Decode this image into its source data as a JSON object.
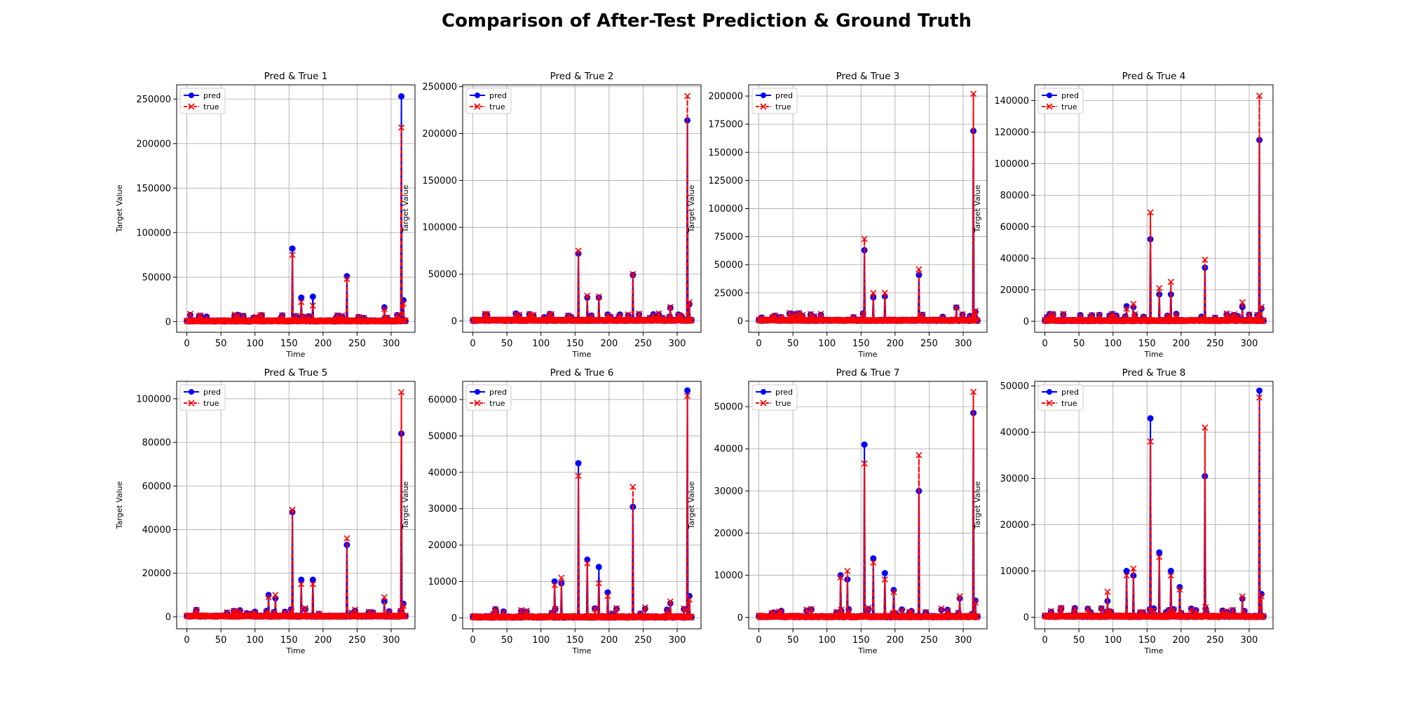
{
  "figure": {
    "suptitle": "Comparison of After-Test Prediction & Ground Truth"
  },
  "colors": {
    "pred": "#0000ff",
    "true": "#ff0000",
    "grid": "#b0b0b0",
    "axes": "#000000"
  },
  "chart_data": [
    {
      "type": "line",
      "title": "Pred & True 1",
      "xlabel": "Time",
      "ylabel": "Target Value",
      "xlim": [
        -15,
        335
      ],
      "ylim": [
        -12000,
        266000
      ],
      "xticks": [
        0,
        50,
        100,
        150,
        200,
        250,
        300
      ],
      "yticks": [
        0,
        50000,
        100000,
        150000,
        200000,
        250000
      ],
      "grid": true,
      "legend": "upper-left",
      "base": 1200,
      "series": [
        {
          "name": "pred",
          "marker": "o",
          "style": "solid",
          "x": [
            155,
            168,
            185,
            235,
            290,
            315,
            318
          ],
          "y": [
            82000,
            27000,
            28000,
            51000,
            16000,
            253000,
            24000
          ]
        },
        {
          "name": "true",
          "marker": "x",
          "style": "dashed",
          "x": [
            155,
            168,
            185,
            235,
            290,
            315,
            318
          ],
          "y": [
            75000,
            22000,
            18000,
            48000,
            14000,
            218000,
            20000
          ]
        }
      ]
    },
    {
      "type": "line",
      "title": "Pred & True 2",
      "xlabel": "Time",
      "ylabel": "Target Value",
      "xlim": [
        -15,
        335
      ],
      "ylim": [
        -12000,
        252000
      ],
      "xticks": [
        0,
        50,
        100,
        150,
        200,
        250,
        300
      ],
      "yticks": [
        0,
        50000,
        100000,
        150000,
        200000,
        250000
      ],
      "grid": true,
      "legend": "upper-left",
      "base": 1200,
      "series": [
        {
          "name": "pred",
          "marker": "o",
          "style": "solid",
          "x": [
            155,
            168,
            185,
            235,
            290,
            315,
            318
          ],
          "y": [
            72000,
            25000,
            25000,
            49000,
            14000,
            214000,
            18000
          ]
        },
        {
          "name": "true",
          "marker": "x",
          "style": "dashed",
          "x": [
            155,
            168,
            185,
            235,
            290,
            315,
            318
          ],
          "y": [
            75000,
            27000,
            26000,
            50000,
            15000,
            240000,
            20000
          ]
        }
      ]
    },
    {
      "type": "line",
      "title": "Pred & True 3",
      "xlabel": "Time",
      "ylabel": "Target Value",
      "xlim": [
        -15,
        335
      ],
      "ylim": [
        -10000,
        210000
      ],
      "xticks": [
        0,
        50,
        100,
        150,
        200,
        250,
        300
      ],
      "yticks": [
        0,
        25000,
        50000,
        75000,
        100000,
        125000,
        150000,
        175000,
        200000
      ],
      "grid": true,
      "legend": "upper-left",
      "base": 1000,
      "series": [
        {
          "name": "pred",
          "marker": "o",
          "style": "solid",
          "x": [
            155,
            168,
            185,
            235,
            290,
            315,
            318
          ],
          "y": [
            63000,
            21000,
            22000,
            41000,
            12000,
            169000,
            8000
          ]
        },
        {
          "name": "true",
          "marker": "x",
          "style": "dashed",
          "x": [
            155,
            168,
            185,
            235,
            290,
            315,
            318
          ],
          "y": [
            73000,
            25000,
            25000,
            46000,
            12000,
            202000,
            9000
          ]
        }
      ]
    },
    {
      "type": "line",
      "title": "Pred & True 4",
      "xlabel": "Time",
      "ylabel": "Target Value",
      "xlim": [
        -15,
        335
      ],
      "ylim": [
        -7000,
        150000
      ],
      "xticks": [
        0,
        50,
        100,
        150,
        200,
        250,
        300
      ],
      "yticks": [
        0,
        20000,
        40000,
        60000,
        80000,
        100000,
        120000,
        140000
      ],
      "grid": true,
      "legend": "upper-left",
      "base": 700,
      "series": [
        {
          "name": "pred",
          "marker": "o",
          "style": "solid",
          "x": [
            120,
            130,
            155,
            168,
            185,
            235,
            290,
            315,
            318
          ],
          "y": [
            9500,
            9000,
            52000,
            17000,
            17000,
            34000,
            9000,
            115000,
            8000
          ]
        },
        {
          "name": "true",
          "marker": "x",
          "style": "dashed",
          "x": [
            120,
            130,
            155,
            168,
            185,
            235,
            290,
            315,
            318
          ],
          "y": [
            8000,
            11000,
            69000,
            21000,
            25000,
            39000,
            12000,
            143000,
            9000
          ]
        }
      ]
    },
    {
      "type": "line",
      "title": "Pred & True 5",
      "xlabel": "Time",
      "ylabel": "Target Value",
      "xlim": [
        -15,
        335
      ],
      "ylim": [
        -5500,
        108000
      ],
      "xticks": [
        0,
        50,
        100,
        150,
        200,
        250,
        300
      ],
      "yticks": [
        0,
        20000,
        40000,
        60000,
        80000,
        100000
      ],
      "grid": true,
      "legend": "upper-left",
      "base": 500,
      "series": [
        {
          "name": "pred",
          "marker": "o",
          "style": "solid",
          "x": [
            120,
            130,
            155,
            168,
            185,
            235,
            290,
            315,
            318
          ],
          "y": [
            10000,
            8500,
            48000,
            17000,
            17000,
            33000,
            7000,
            84000,
            6000
          ]
        },
        {
          "name": "true",
          "marker": "x",
          "style": "dashed",
          "x": [
            120,
            130,
            155,
            168,
            185,
            235,
            290,
            315,
            318
          ],
          "y": [
            9000,
            10000,
            49000,
            15000,
            15000,
            36000,
            9000,
            103000,
            5000
          ]
        }
      ]
    },
    {
      "type": "line",
      "title": "Pred & True 6",
      "xlabel": "Time",
      "ylabel": "Target Value",
      "xlim": [
        -15,
        335
      ],
      "ylim": [
        -3000,
        65000
      ],
      "xticks": [
        0,
        50,
        100,
        150,
        200,
        250,
        300
      ],
      "yticks": [
        0,
        10000,
        20000,
        30000,
        40000,
        50000,
        60000
      ],
      "grid": true,
      "legend": "upper-left",
      "base": 400,
      "series": [
        {
          "name": "pred",
          "marker": "o",
          "style": "solid",
          "x": [
            120,
            130,
            155,
            168,
            185,
            198,
            235,
            290,
            315,
            318
          ],
          "y": [
            10000,
            9500,
            42500,
            16000,
            14000,
            7000,
            30500,
            4000,
            62500,
            6000
          ]
        },
        {
          "name": "true",
          "marker": "x",
          "style": "dashed",
          "x": [
            120,
            130,
            155,
            168,
            185,
            198,
            235,
            290,
            315,
            318
          ],
          "y": [
            9000,
            11000,
            39000,
            15000,
            9500,
            6000,
            36000,
            4500,
            61000,
            5000
          ]
        }
      ]
    },
    {
      "type": "line",
      "title": "Pred & True 7",
      "xlabel": "Time",
      "ylabel": "Target Value",
      "xlim": [
        -15,
        335
      ],
      "ylim": [
        -2700,
        56000
      ],
      "xticks": [
        0,
        50,
        100,
        150,
        200,
        250,
        300
      ],
      "yticks": [
        0,
        10000,
        20000,
        30000,
        40000,
        50000
      ],
      "grid": true,
      "legend": "upper-left",
      "base": 300,
      "series": [
        {
          "name": "pred",
          "marker": "o",
          "style": "solid",
          "x": [
            120,
            130,
            155,
            168,
            185,
            198,
            235,
            295,
            315,
            318
          ],
          "y": [
            10000,
            9000,
            41000,
            14000,
            10500,
            6500,
            30000,
            4500,
            48500,
            4000
          ]
        },
        {
          "name": "true",
          "marker": "x",
          "style": "dashed",
          "x": [
            120,
            130,
            155,
            168,
            185,
            198,
            235,
            295,
            315,
            318
          ],
          "y": [
            9500,
            11000,
            36500,
            13000,
            9000,
            6000,
            38500,
            5000,
            53500,
            3500
          ]
        }
      ]
    },
    {
      "type": "line",
      "title": "Pred & True 8",
      "xlabel": "Time",
      "ylabel": "Target Value",
      "xlim": [
        -15,
        335
      ],
      "ylim": [
        -2500,
        51000
      ],
      "xticks": [
        0,
        50,
        100,
        150,
        200,
        250,
        300
      ],
      "yticks": [
        0,
        10000,
        20000,
        30000,
        40000,
        50000
      ],
      "grid": true,
      "legend": "upper-left",
      "base": 300,
      "series": [
        {
          "name": "pred",
          "marker": "o",
          "style": "solid",
          "x": [
            92,
            120,
            130,
            155,
            168,
            185,
            198,
            235,
            290,
            315,
            318
          ],
          "y": [
            3500,
            10000,
            9000,
            43000,
            14000,
            10000,
            6500,
            30500,
            4000,
            49000,
            5000
          ]
        },
        {
          "name": "true",
          "marker": "x",
          "style": "dashed",
          "x": [
            92,
            120,
            130,
            155,
            168,
            185,
            198,
            235,
            290,
            315,
            318
          ],
          "y": [
            5500,
            9000,
            10500,
            38000,
            13000,
            9000,
            6000,
            41000,
            4500,
            47500,
            4500
          ]
        }
      ]
    }
  ]
}
